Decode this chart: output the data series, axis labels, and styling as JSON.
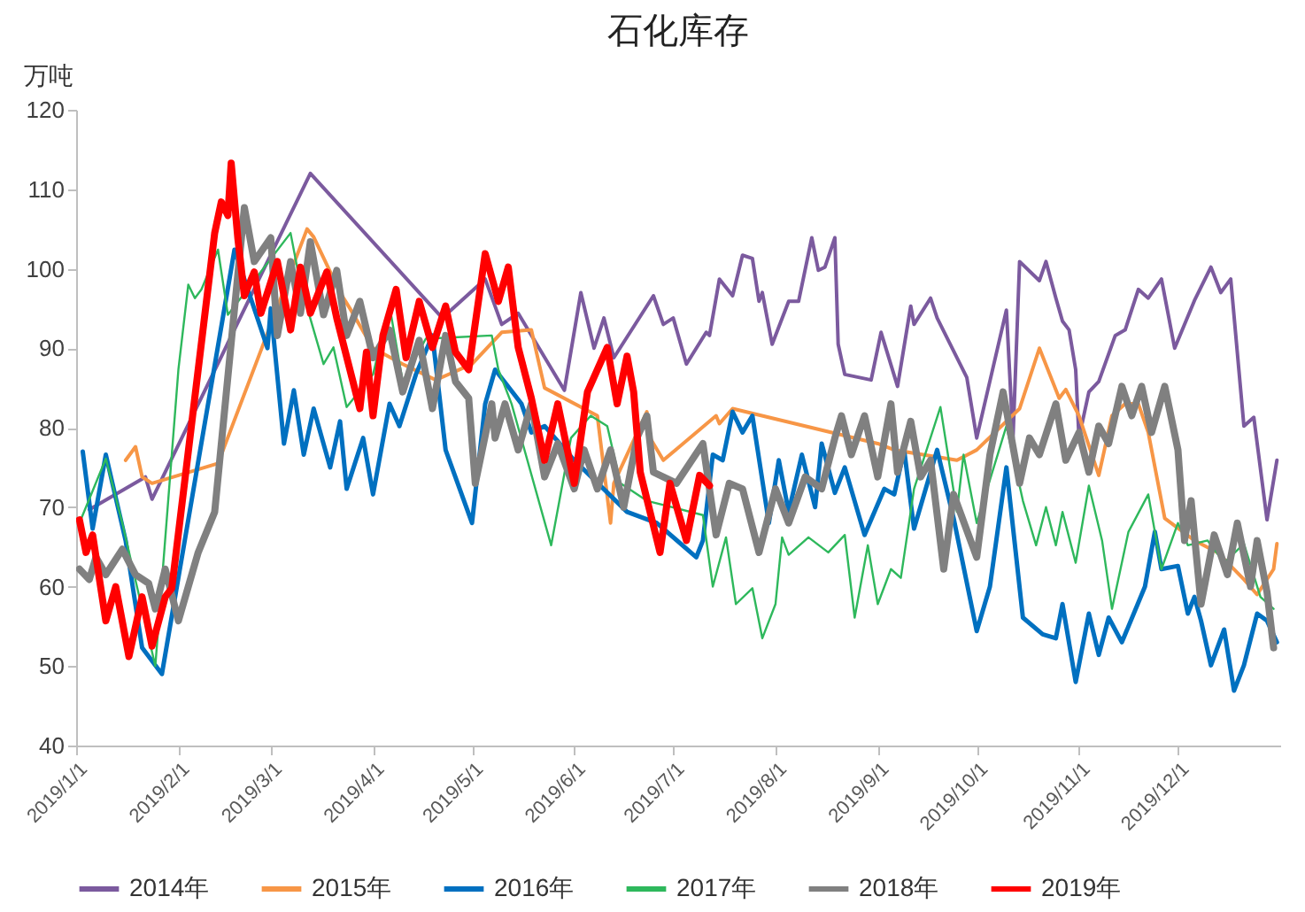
{
  "chart_data": {
    "type": "line",
    "title": "石化库存",
    "ylabel": "万吨",
    "legend": "bottom",
    "xlim": [
      "2019-01-01",
      "2020-01-01"
    ],
    "xticks": [
      {
        "value": "2019-01-01",
        "label": "2019/1/1"
      },
      {
        "value": "2019-02-01",
        "label": "2019/2/1"
      },
      {
        "value": "2019-03-01",
        "label": "2019/3/1"
      },
      {
        "value": "2019-04-01",
        "label": "2019/4/1"
      },
      {
        "value": "2019-05-01",
        "label": "2019/5/1"
      },
      {
        "value": "2019-06-01",
        "label": "2019/6/1"
      },
      {
        "value": "2019-07-01",
        "label": "2019/7/1"
      },
      {
        "value": "2019-08-01",
        "label": "2019/8/1"
      },
      {
        "value": "2019-09-01",
        "label": "2019/9/1"
      },
      {
        "value": "2019-10-01",
        "label": "2019/10/1"
      },
      {
        "value": "2019-11-01",
        "label": "2019/11/1"
      },
      {
        "value": "2019-12-01",
        "label": "2019/12/1"
      }
    ],
    "ylim": [
      40,
      120
    ],
    "yticks": [
      40,
      50,
      60,
      70,
      80,
      90,
      100,
      110,
      120
    ],
    "series": [
      {
        "name": "2014年",
        "color": "#7b5a9e",
        "x": [
          "2019-01-05",
          "2019-01-22",
          "2019-01-24",
          "2019-03-13",
          "2019-04-22",
          "2019-05-05",
          "2019-05-10",
          "2019-05-15",
          "2019-05-29",
          "2019-06-03",
          "2019-06-07",
          "2019-06-10",
          "2019-06-13",
          "2019-06-25",
          "2019-06-28",
          "2019-07-01",
          "2019-07-05",
          "2019-07-11",
          "2019-07-12",
          "2019-07-15",
          "2019-07-19",
          "2019-07-22",
          "2019-07-25",
          "2019-07-27",
          "2019-07-28",
          "2019-07-31",
          "2019-08-05",
          "2019-08-08",
          "2019-08-12",
          "2019-08-14",
          "2019-08-16",
          "2019-08-19",
          "2019-08-20",
          "2019-08-22",
          "2019-08-30",
          "2019-09-02",
          "2019-09-07",
          "2019-09-11",
          "2019-09-12",
          "2019-09-17",
          "2019-09-19",
          "2019-09-28",
          "2019-10-01",
          "2019-10-10",
          "2019-10-12",
          "2019-10-14",
          "2019-10-20",
          "2019-10-22",
          "2019-10-25",
          "2019-10-27",
          "2019-10-29",
          "2019-10-31",
          "2019-11-01",
          "2019-11-04",
          "2019-11-07",
          "2019-11-12",
          "2019-11-15",
          "2019-11-19",
          "2019-11-22",
          "2019-11-26",
          "2019-11-30",
          "2019-12-06",
          "2019-12-11",
          "2019-12-14",
          "2019-12-17",
          "2019-12-21",
          "2019-12-24",
          "2019-12-28",
          "2019-12-31"
        ],
        "values": [
          69.7,
          73.8,
          71,
          112,
          93.8,
          98.7,
          93,
          94.4,
          84.7,
          97,
          90,
          93.8,
          88.8,
          96.6,
          93,
          93.8,
          88,
          92,
          91.6,
          98.7,
          96.6,
          101.7,
          101.3,
          95.9,
          97,
          90.5,
          95.9,
          95.9,
          103.9,
          99.8,
          100.2,
          103.9,
          90.5,
          86.7,
          86,
          92,
          85.2,
          95.3,
          93,
          96.3,
          93.8,
          86.3,
          78.7,
          94.8,
          78.7,
          100.9,
          98.5,
          100.9,
          96.3,
          93.4,
          92.3,
          87.3,
          78.7,
          84.5,
          85.8,
          91.6,
          92.3,
          97.4,
          96.3,
          98.7,
          90,
          96,
          100.2,
          97,
          98.7,
          80.2,
          81.3,
          68.4,
          75.9
        ]
      },
      {
        "name": "2015年",
        "color": "#f79646",
        "x": [
          "2019-01-16",
          "2019-01-19",
          "2019-01-21",
          "2019-01-24",
          "2019-02-13",
          "2019-03-12",
          "2019-03-14",
          "2019-03-22",
          "2019-03-25",
          "2019-04-01",
          "2019-04-10",
          "2019-04-20",
          "2019-05-01",
          "2019-05-10",
          "2019-05-19",
          "2019-05-23",
          "2019-06-08",
          "2019-06-12",
          "2019-06-13",
          "2019-06-23",
          "2019-06-24",
          "2019-06-28",
          "2019-07-14",
          "2019-07-15",
          "2019-07-19",
          "2019-09-01",
          "2019-09-06",
          "2019-09-25",
          "2019-10-01",
          "2019-10-14",
          "2019-10-20",
          "2019-10-26",
          "2019-10-28",
          "2019-11-01",
          "2019-11-07",
          "2019-11-11",
          "2019-11-15",
          "2019-11-19",
          "2019-11-22",
          "2019-11-27",
          "2019-12-06",
          "2019-12-13",
          "2019-12-21",
          "2019-12-25",
          "2019-12-30",
          "2019-12-31"
        ],
        "values": [
          75.9,
          77.6,
          73.8,
          73,
          75.5,
          105,
          104,
          97,
          95,
          90,
          88,
          86,
          88,
          92,
          92.3,
          85,
          81.5,
          68,
          73,
          82,
          78.7,
          75.9,
          81.5,
          80.5,
          82.4,
          78,
          77.2,
          75.9,
          77.2,
          82.4,
          90,
          83.7,
          84.8,
          81.5,
          74,
          81.5,
          83,
          83,
          79.4,
          68.6,
          65.8,
          64.3,
          60.9,
          59,
          62.2,
          65.4
        ]
      },
      {
        "name": "2016年",
        "color": "#0070c0",
        "x": [
          "2019-01-03",
          "2019-01-06",
          "2019-01-10",
          "2019-01-16",
          "2019-01-21",
          "2019-01-27",
          "2019-02-18",
          "2019-02-28",
          "2019-03-01",
          "2019-03-05",
          "2019-03-08",
          "2019-03-11",
          "2019-03-14",
          "2019-03-19",
          "2019-03-22",
          "2019-03-24",
          "2019-03-29",
          "2019-04-01",
          "2019-04-06",
          "2019-04-09",
          "2019-04-14",
          "2019-04-19",
          "2019-04-23",
          "2019-05-01",
          "2019-05-05",
          "2019-05-08",
          "2019-05-16",
          "2019-05-19",
          "2019-05-23",
          "2019-06-01",
          "2019-06-17",
          "2019-06-26",
          "2019-07-08",
          "2019-07-10",
          "2019-07-13",
          "2019-07-16",
          "2019-07-19",
          "2019-07-22",
          "2019-07-25",
          "2019-07-30",
          "2019-08-02",
          "2019-08-05",
          "2019-08-09",
          "2019-08-13",
          "2019-08-15",
          "2019-08-19",
          "2019-08-22",
          "2019-08-28",
          "2019-09-03",
          "2019-09-06",
          "2019-09-09",
          "2019-09-12",
          "2019-09-19",
          "2019-09-24",
          "2019-10-01",
          "2019-10-05",
          "2019-10-10",
          "2019-10-15",
          "2019-10-21",
          "2019-10-25",
          "2019-10-27",
          "2019-10-31",
          "2019-11-04",
          "2019-11-07",
          "2019-11-10",
          "2019-11-14",
          "2019-11-21",
          "2019-11-24",
          "2019-11-26",
          "2019-12-01",
          "2019-12-04",
          "2019-12-06",
          "2019-12-08",
          "2019-12-11",
          "2019-12-15",
          "2019-12-18",
          "2019-12-21",
          "2019-12-25",
          "2019-12-28",
          "2019-12-31"
        ],
        "values": [
          77,
          67.3,
          76.6,
          65.8,
          52.3,
          49,
          102.4,
          90,
          95,
          78,
          84.7,
          76.6,
          82.4,
          75,
          80.8,
          72.3,
          78.7,
          71.6,
          83,
          80.2,
          86.7,
          91.6,
          77.2,
          68,
          83,
          87.3,
          83,
          79.4,
          80.2,
          75.9,
          69.4,
          68,
          63.7,
          65.8,
          76.6,
          75.9,
          82,
          79.4,
          81.5,
          68,
          75.9,
          69.4,
          76.6,
          70,
          78,
          71.8,
          75,
          66.5,
          72.3,
          71.6,
          77.2,
          67.3,
          77.2,
          68.6,
          54.4,
          60,
          75,
          56.1,
          54,
          53.5,
          57.8,
          48,
          56.6,
          51.4,
          56.1,
          53,
          60,
          66.9,
          62.2,
          62.6,
          56.6,
          58.7,
          55.7,
          50.1,
          54.6,
          46.9,
          50.1,
          56.6,
          55.7,
          53
        ]
      },
      {
        "name": "2017年",
        "color": "#2eb85c",
        "x": [
          "2019-01-02",
          "2019-01-10",
          "2019-01-15",
          "2019-01-25",
          "2019-02-01",
          "2019-02-04",
          "2019-02-06",
          "2019-02-08",
          "2019-02-13",
          "2019-02-16",
          "2019-03-07",
          "2019-03-10",
          "2019-03-17",
          "2019-03-20",
          "2019-03-24",
          "2019-04-01",
          "2019-04-06",
          "2019-04-10",
          "2019-04-17",
          "2019-05-07",
          "2019-05-09",
          "2019-05-13",
          "2019-05-25",
          "2019-05-31",
          "2019-06-06",
          "2019-06-11",
          "2019-06-15",
          "2019-06-23",
          "2019-07-10",
          "2019-07-13",
          "2019-07-17",
          "2019-07-20",
          "2019-07-25",
          "2019-07-28",
          "2019-08-01",
          "2019-08-03",
          "2019-08-05",
          "2019-08-11",
          "2019-08-17",
          "2019-08-22",
          "2019-08-25",
          "2019-08-29",
          "2019-09-01",
          "2019-09-05",
          "2019-09-08",
          "2019-09-12",
          "2019-09-20",
          "2019-09-25",
          "2019-09-27",
          "2019-10-01",
          "2019-10-10",
          "2019-10-15",
          "2019-10-19",
          "2019-10-22",
          "2019-10-25",
          "2019-10-27",
          "2019-10-31",
          "2019-11-04",
          "2019-11-08",
          "2019-11-11",
          "2019-11-16",
          "2019-11-22",
          "2019-11-26",
          "2019-12-01",
          "2019-12-04",
          "2019-12-10",
          "2019-12-15",
          "2019-12-21",
          "2019-12-26",
          "2019-12-30"
        ],
        "values": [
          68,
          76.1,
          68,
          50,
          87.3,
          98,
          96.3,
          97.4,
          102.4,
          94.2,
          104.5,
          98,
          88,
          90.1,
          82.6,
          86.7,
          95.3,
          85.8,
          91.2,
          91.6,
          87.3,
          83,
          65.2,
          78.7,
          81.5,
          80.2,
          73,
          70.8,
          69,
          60,
          66.2,
          57.8,
          59.8,
          53.5,
          57.8,
          66.2,
          64,
          66.2,
          64.3,
          66.5,
          56.1,
          65.2,
          57.8,
          62.2,
          61.1,
          72.3,
          82.6,
          69.4,
          76.6,
          68,
          80.2,
          70.8,
          65.2,
          70,
          65.2,
          69.4,
          63,
          72.7,
          65.8,
          57.2,
          66.9,
          71.6,
          62.2,
          68,
          65.2,
          65.8,
          63,
          65.4,
          58.7,
          57.2
        ]
      },
      {
        "name": "2018年",
        "color": "#808080",
        "x": [
          "2019-01-02",
          "2019-01-05",
          "2019-01-07",
          "2019-01-10",
          "2019-01-15",
          "2019-01-19",
          "2019-01-23",
          "2019-01-25",
          "2019-01-28",
          "2019-02-01",
          "2019-02-07",
          "2019-02-12",
          "2019-02-21",
          "2019-02-24",
          "2019-03-01",
          "2019-03-03",
          "2019-03-07",
          "2019-03-10",
          "2019-03-13",
          "2019-03-17",
          "2019-03-21",
          "2019-03-24",
          "2019-03-28",
          "2019-04-01",
          "2019-04-06",
          "2019-04-10",
          "2019-04-15",
          "2019-04-19",
          "2019-04-23",
          "2019-04-26",
          "2019-04-30",
          "2019-05-02",
          "2019-05-07",
          "2019-05-08",
          "2019-05-11",
          "2019-05-15",
          "2019-05-19",
          "2019-05-23",
          "2019-05-27",
          "2019-06-01",
          "2019-06-04",
          "2019-06-08",
          "2019-06-12",
          "2019-06-16",
          "2019-06-20",
          "2019-06-23",
          "2019-06-25",
          "2019-07-02",
          "2019-07-10",
          "2019-07-14",
          "2019-07-18",
          "2019-07-22",
          "2019-07-27",
          "2019-08-01",
          "2019-08-05",
          "2019-08-10",
          "2019-08-15",
          "2019-08-19",
          "2019-08-21",
          "2019-08-24",
          "2019-08-28",
          "2019-09-01",
          "2019-09-05",
          "2019-09-07",
          "2019-09-11",
          "2019-09-14",
          "2019-09-17",
          "2019-09-21",
          "2019-09-24",
          "2019-10-01",
          "2019-10-05",
          "2019-10-09",
          "2019-10-14",
          "2019-10-17",
          "2019-10-20",
          "2019-10-25",
          "2019-10-28",
          "2019-11-01",
          "2019-11-04",
          "2019-11-07",
          "2019-11-10",
          "2019-11-14",
          "2019-11-17",
          "2019-11-20",
          "2019-11-23",
          "2019-11-27",
          "2019-12-01",
          "2019-12-03",
          "2019-12-05",
          "2019-12-08",
          "2019-12-12",
          "2019-12-16",
          "2019-12-19",
          "2019-12-23",
          "2019-12-25",
          "2019-12-28",
          "2019-12-30"
        ],
        "values": [
          62.2,
          60.9,
          63.7,
          61.5,
          64.7,
          61.5,
          60.4,
          57.2,
          62.2,
          55.7,
          64.3,
          69.4,
          107.7,
          100.9,
          103.9,
          91.6,
          100.9,
          94.4,
          103.4,
          94.2,
          99.8,
          91.6,
          95.9,
          88.8,
          92.3,
          84.5,
          91,
          82.4,
          91.6,
          85.8,
          83.7,
          73,
          83,
          78.7,
          83,
          77.2,
          83,
          73.8,
          78,
          72.3,
          77.2,
          72.3,
          77.2,
          70,
          78.7,
          81.5,
          74.4,
          73,
          78,
          66.5,
          73,
          72.3,
          64.3,
          72.3,
          68,
          73.8,
          72.3,
          78.7,
          81.5,
          76.6,
          81.5,
          73.8,
          83,
          74.4,
          80.8,
          73.8,
          75.9,
          62.2,
          71.6,
          63.7,
          76.6,
          84.5,
          73,
          78.7,
          76.6,
          83,
          75.9,
          79.4,
          74.4,
          80.2,
          78,
          85.2,
          81.5,
          85.2,
          79.4,
          85.2,
          77.2,
          65.8,
          70.8,
          57.8,
          66.5,
          61.5,
          68,
          60,
          65.8,
          59.3,
          52.3
        ]
      },
      {
        "name": "2019年",
        "color": "#ff0000",
        "x": [
          "2019-01-02",
          "2019-01-04",
          "2019-01-06",
          "2019-01-10",
          "2019-01-13",
          "2019-01-17",
          "2019-01-21",
          "2019-01-24",
          "2019-01-28",
          "2019-01-30",
          "2019-02-12",
          "2019-02-14",
          "2019-02-16",
          "2019-02-17",
          "2019-02-19",
          "2019-02-21",
          "2019-02-24",
          "2019-02-26",
          "2019-03-03",
          "2019-03-07",
          "2019-03-10",
          "2019-03-13",
          "2019-03-18",
          "2019-03-21",
          "2019-03-28",
          "2019-03-30",
          "2019-04-01",
          "2019-04-04",
          "2019-04-08",
          "2019-04-11",
          "2019-04-15",
          "2019-04-19",
          "2019-04-23",
          "2019-04-26",
          "2019-04-30",
          "2019-05-05",
          "2019-05-09",
          "2019-05-12",
          "2019-05-15",
          "2019-05-19",
          "2019-05-23",
          "2019-05-27",
          "2019-06-01",
          "2019-06-05",
          "2019-06-11",
          "2019-06-14",
          "2019-06-17",
          "2019-06-19",
          "2019-06-21",
          "2019-06-27",
          "2019-06-30",
          "2019-07-05",
          "2019-07-09",
          "2019-07-12"
        ],
        "values": [
          68.4,
          64.3,
          66.5,
          55.7,
          60,
          51.2,
          58.7,
          52.5,
          58.7,
          59.8,
          104.5,
          108.4,
          106.7,
          113.3,
          103.9,
          96.6,
          99.6,
          94.4,
          100.9,
          92.3,
          100.2,
          94.4,
          99.6,
          93.8,
          82.4,
          89.5,
          81.5,
          91.6,
          97.4,
          88.8,
          95.9,
          90.1,
          95.3,
          89.5,
          87.3,
          101.9,
          95.9,
          100.2,
          90.1,
          83.7,
          75.9,
          83,
          73,
          84.5,
          90.1,
          83,
          89,
          84.5,
          74.4,
          64.3,
          73,
          65.8,
          74,
          72.7
        ]
      }
    ]
  }
}
